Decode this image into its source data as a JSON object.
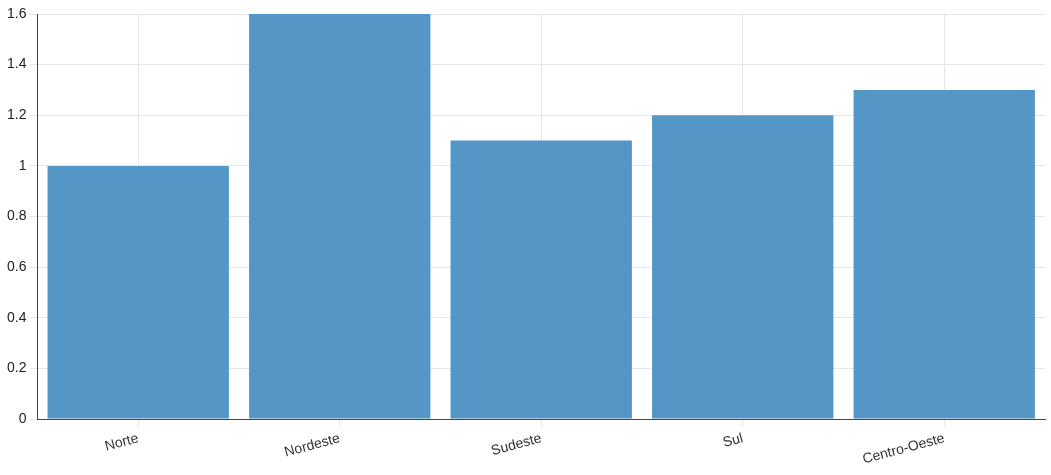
{
  "chart_data": {
    "type": "bar",
    "categories": [
      "Norte",
      "Nordeste",
      "Sudeste",
      "Sul",
      "Centro-Oeste"
    ],
    "values": [
      1.0,
      1.6,
      1.1,
      1.2,
      1.3
    ],
    "color": "#5497c6",
    "ylim": [
      0,
      1.6
    ],
    "yticks": [
      0,
      0.2,
      0.4,
      0.6,
      0.8,
      1,
      1.2,
      1.4,
      1.6
    ],
    "grid": true,
    "legend": false
  }
}
